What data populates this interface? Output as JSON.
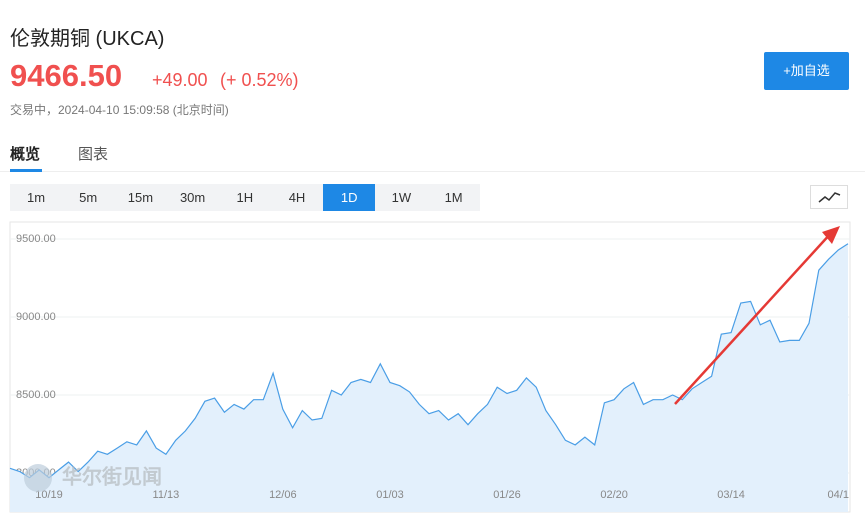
{
  "header": {
    "title": "伦敦期铜 (UKCA)",
    "price": "9466.50",
    "change": "+49.00",
    "change_pct": "(+ 0.52%)",
    "status": "交易中，2024-04-10 15:09:58 (北京时间)",
    "button": "+加自选"
  },
  "tabs": [
    "概览",
    "图表"
  ],
  "periods": [
    "1m",
    "5m",
    "15m",
    "30m",
    "1H",
    "4H",
    "1D",
    "1W",
    "1M"
  ],
  "active_period": 6,
  "watermark": "华尔街见闻",
  "chart_data": {
    "type": "line",
    "categories": [
      null,
      null,
      null,
      null,
      "10/19",
      null,
      null,
      null,
      null,
      null,
      null,
      null,
      null,
      null,
      null,
      null,
      "11/13",
      null,
      null,
      null,
      null,
      null,
      null,
      null,
      null,
      null,
      null,
      null,
      "12/06",
      null,
      null,
      null,
      null,
      null,
      null,
      null,
      null,
      null,
      null,
      "01/03",
      null,
      null,
      null,
      null,
      null,
      null,
      null,
      null,
      null,
      null,
      null,
      "01/26",
      null,
      null,
      null,
      null,
      null,
      null,
      null,
      null,
      null,
      null,
      "02/20",
      null,
      null,
      null,
      null,
      null,
      null,
      null,
      null,
      null,
      null,
      null,
      "03/14",
      null,
      null,
      null,
      null,
      null,
      null,
      null,
      null,
      null,
      null,
      "04/1",
      null
    ],
    "series": [
      {
        "color": "#4a9ee6",
        "values": [
          8030,
          8010,
          7970,
          8020,
          7970,
          8020,
          8070,
          8010,
          8070,
          8140,
          8120,
          8160,
          8200,
          8180,
          8270,
          8160,
          8120,
          8210,
          8270,
          8350,
          8460,
          8480,
          8390,
          8440,
          8410,
          8470,
          8470,
          8640,
          8410,
          8290,
          8400,
          8340,
          8350,
          8530,
          8500,
          8580,
          8600,
          8580,
          8700,
          8580,
          8560,
          8520,
          8440,
          8380,
          8400,
          8340,
          8380,
          8310,
          8380,
          8440,
          8550,
          8510,
          8530,
          8610,
          8550,
          8400,
          8310,
          8210,
          8180,
          8230,
          8180,
          8450,
          8470,
          8540,
          8580,
          8440,
          8470,
          8470,
          8500,
          8470,
          8540,
          8580,
          8620,
          8890,
          8900,
          9090,
          9100,
          8950,
          8980,
          8840,
          8850,
          8850,
          8960,
          9300,
          9370,
          9430,
          9470
        ]
      }
    ],
    "ylim": [
      7795,
      9590
    ],
    "yticks": [
      {
        "value": 8000,
        "label": "8000.00"
      },
      {
        "value": 8500,
        "label": "8500.00"
      },
      {
        "value": 9000,
        "label": "9000.00"
      },
      {
        "value": 9500,
        "label": "9500.00"
      }
    ],
    "grid": true
  }
}
